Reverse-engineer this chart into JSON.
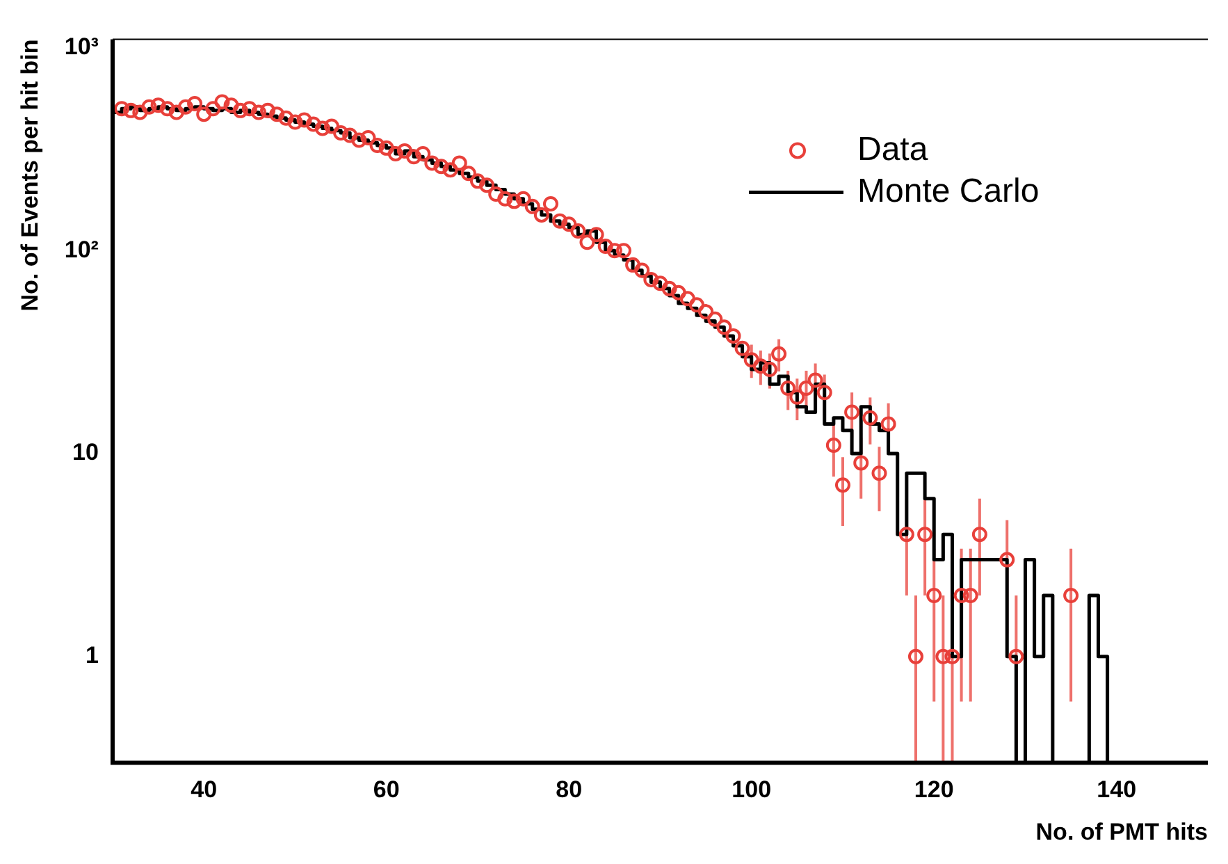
{
  "chart_data": {
    "type": "histogram",
    "xlabel": "No. of PMT hits",
    "ylabel": "No. of Events per hit bin",
    "log": "y",
    "xlim": [
      30,
      150
    ],
    "xticks": [
      40,
      60,
      80,
      100,
      120,
      140
    ],
    "ylim": [
      0.3,
      1100
    ],
    "yticks": [
      1,
      10,
      {
        "value": 100,
        "label": "10²"
      },
      {
        "value": 1000,
        "label": "10³"
      }
    ],
    "legend": "top right",
    "series": [
      {
        "name": "Data",
        "type": "scatter",
        "color": "#e8403a",
        "marker": "circle",
        "x": [
          31,
          32,
          33,
          34,
          35,
          36,
          37,
          38,
          39,
          40,
          41,
          42,
          43,
          44,
          45,
          46,
          47,
          48,
          49,
          50,
          51,
          52,
          53,
          54,
          55,
          56,
          57,
          58,
          59,
          60,
          61,
          62,
          63,
          64,
          65,
          66,
          67,
          68,
          69,
          70,
          71,
          72,
          73,
          74,
          75,
          76,
          77,
          78,
          79,
          80,
          81,
          82,
          83,
          84,
          85,
          86,
          87,
          88,
          89,
          90,
          91,
          92,
          93,
          94,
          95,
          96,
          97,
          98,
          99,
          100,
          101,
          102,
          103,
          104,
          105,
          106,
          107,
          108,
          109,
          110,
          111,
          112,
          113,
          114,
          115,
          117,
          118,
          119,
          120,
          121,
          122,
          123,
          124,
          125,
          128,
          129,
          135
        ],
        "values": [
          500,
          490,
          480,
          510,
          520,
          500,
          480,
          510,
          530,
          470,
          500,
          540,
          520,
          490,
          500,
          480,
          490,
          470,
          450,
          430,
          440,
          420,
          400,
          410,
          380,
          370,
          350,
          360,
          330,
          320,
          300,
          310,
          290,
          300,
          270,
          260,
          250,
          270,
          240,
          220,
          210,
          190,
          180,
          175,
          180,
          165,
          150,
          170,
          140,
          135,
          125,
          110,
          120,
          105,
          100,
          100,
          85,
          80,
          72,
          69,
          65,
          62,
          58,
          54,
          50,
          46,
          42,
          38,
          33,
          29,
          27,
          26,
          31,
          21,
          19,
          21,
          23,
          20,
          11,
          7,
          16,
          9,
          15,
          8,
          14,
          4,
          1,
          4,
          2,
          1,
          1,
          2,
          2,
          4,
          3,
          1,
          2
        ],
        "errors": [
          null,
          null,
          null,
          null,
          null,
          null,
          null,
          null,
          null,
          null,
          null,
          null,
          null,
          null,
          null,
          null,
          null,
          null,
          null,
          null,
          null,
          null,
          null,
          null,
          null,
          null,
          null,
          null,
          null,
          null,
          null,
          null,
          null,
          null,
          null,
          null,
          null,
          null,
          null,
          null,
          null,
          null,
          null,
          null,
          null,
          null,
          null,
          null,
          null,
          null,
          null,
          null,
          null,
          null,
          null,
          null,
          null,
          null,
          null,
          null,
          null,
          null,
          null,
          null,
          null,
          null,
          null,
          null,
          null,
          5.4,
          5.2,
          5.1,
          5.6,
          4.6,
          4.4,
          4.6,
          4.8,
          4.5,
          3.3,
          2.6,
          4,
          3,
          3.9,
          2.8,
          3.7,
          2,
          [
            0.3,
            2
          ],
          2,
          1.4,
          [
            0.3,
            2
          ],
          [
            0.3,
            2
          ],
          1.4,
          1.4,
          2,
          1.7,
          [
            0.3,
            2
          ],
          1.4
        ]
      },
      {
        "name": "Monte Carlo",
        "color": "#000000",
        "bins": [
          30,
          31,
          32,
          33,
          34,
          35,
          36,
          37,
          38,
          39,
          40,
          41,
          42,
          43,
          44,
          45,
          46,
          47,
          48,
          49,
          50,
          51,
          52,
          53,
          54,
          55,
          56,
          57,
          58,
          59,
          60,
          61,
          62,
          63,
          64,
          65,
          66,
          67,
          68,
          69,
          70,
          71,
          72,
          73,
          74,
          75,
          76,
          77,
          78,
          79,
          80,
          81,
          82,
          83,
          84,
          85,
          86,
          87,
          88,
          89,
          90,
          91,
          92,
          93,
          94,
          95,
          96,
          97,
          98,
          99,
          100,
          101,
          102,
          103,
          104,
          105,
          106,
          107,
          108,
          109,
          110,
          111,
          112,
          113,
          114,
          115,
          116,
          117,
          118,
          119,
          120,
          121,
          122,
          123,
          124,
          125,
          126,
          127,
          128,
          129,
          130,
          131,
          132,
          133,
          134,
          135,
          136,
          137,
          138,
          139,
          140
        ],
        "values": [
          480,
          500,
          510,
          490,
          500,
          510,
          500,
          490,
          500,
          510,
          500,
          490,
          500,
          480,
          490,
          480,
          470,
          460,
          450,
          440,
          430,
          420,
          410,
          400,
          390,
          380,
          360,
          350,
          340,
          330,
          320,
          300,
          310,
          290,
          280,
          270,
          260,
          250,
          240,
          230,
          220,
          210,
          200,
          190,
          180,
          170,
          160,
          150,
          140,
          135,
          130,
          120,
          125,
          110,
          100,
          95,
          90,
          80,
          75,
          70,
          65,
          60,
          55,
          52,
          48,
          45,
          42,
          38,
          34,
          30,
          26,
          28,
          22,
          24,
          20,
          17,
          16,
          22,
          14,
          15,
          13,
          10,
          17,
          14,
          13,
          10,
          4,
          8,
          8,
          6,
          3,
          4,
          1,
          3,
          3,
          3,
          3,
          3,
          1,
          null,
          3,
          1,
          2,
          null,
          null,
          null,
          null,
          2,
          1,
          null
        ]
      }
    ]
  }
}
